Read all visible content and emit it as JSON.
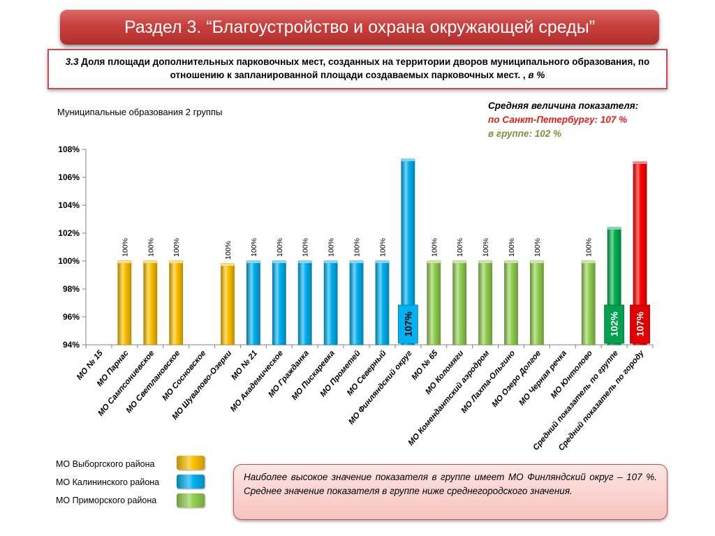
{
  "header": {
    "title": "Раздел 3. “Благоустройство и охрана окружающей среды”"
  },
  "indicator": {
    "number": "3.3",
    "text": "Доля площади дополнительных парковочных мест, созданных на территории дворов муниципального образования, по отношению к запланированной площади создаваемых парковочных мест. ,",
    "unit": "в %"
  },
  "group_label": "Муниципальные образования 2 группы",
  "average": {
    "heading": "Средняя величина показателя:",
    "city": "по Санкт-Петербургу: 107 %",
    "group": "в группе:  102 %"
  },
  "legend": [
    {
      "label": "МО Выборгского района",
      "color": "#ffc000"
    },
    {
      "label": "МО Калининского района",
      "color": "#00b0f0"
    },
    {
      "label": "МО Приморского района",
      "color": "#92d050"
    }
  ],
  "note": "Наиболее высокое значение показателя в группе имеет МО Финляндский округ – 107 %. Среднее значение показателя в группе ниже среднегородского значения.",
  "chart_data": {
    "type": "bar",
    "ylim": [
      94,
      108
    ],
    "yticks": [
      "94%",
      "96%",
      "98%",
      "100%",
      "102%",
      "104%",
      "106%",
      "108%"
    ],
    "ytick_values": [
      94,
      96,
      98,
      100,
      102,
      104,
      106,
      108
    ],
    "grid": false,
    "categories": [
      "МО № 15",
      "МО Парнас",
      "МО Сампсониевское",
      "МО Светлановское",
      "МО Сосновское",
      "МО Шувалово-Озерки",
      "МО № 21",
      "МО Академическое",
      "МО Гражданка",
      "МО Пискаревка",
      "МО Прометей",
      "МО Северный",
      "МО Финляндский округ",
      "МО № 65",
      "МО Коломяги",
      "МО Комендантский аэродром",
      "МО Лахта-Ольгино",
      "МО Озеро Долгое",
      "МО Черная речка",
      "МО Юнтолово",
      "Средний показатель по группе",
      "Средний показатель по городу"
    ],
    "values": [
      null,
      100,
      100,
      100,
      null,
      99.8,
      100,
      100,
      100,
      100,
      100,
      100,
      107.3,
      100,
      100,
      100,
      100,
      100,
      null,
      100,
      102.4,
      107.1
    ],
    "data_labels": [
      "",
      "100%",
      "100%",
      "100%",
      "",
      "100%",
      "100%",
      "100%",
      "100%",
      "100%",
      "100%",
      "100%",
      "107%",
      "100%",
      "100%",
      "100%",
      "100%",
      "100%",
      "",
      "100%",
      "102%",
      "107%"
    ],
    "colors": [
      "",
      "#ffc000",
      "#ffc000",
      "#ffc000",
      "",
      "#ffc000",
      "#00b0f0",
      "#00b0f0",
      "#00b0f0",
      "#00b0f0",
      "#00b0f0",
      "#00b0f0",
      "#00b0f0",
      "#92d050",
      "#92d050",
      "#92d050",
      "#92d050",
      "#92d050",
      "",
      "#92d050",
      "#00b050",
      "#ff0000"
    ],
    "label_box_colors": {
      "12": "#00b0f0",
      "20": "#00a050",
      "21": "#e00000"
    }
  }
}
